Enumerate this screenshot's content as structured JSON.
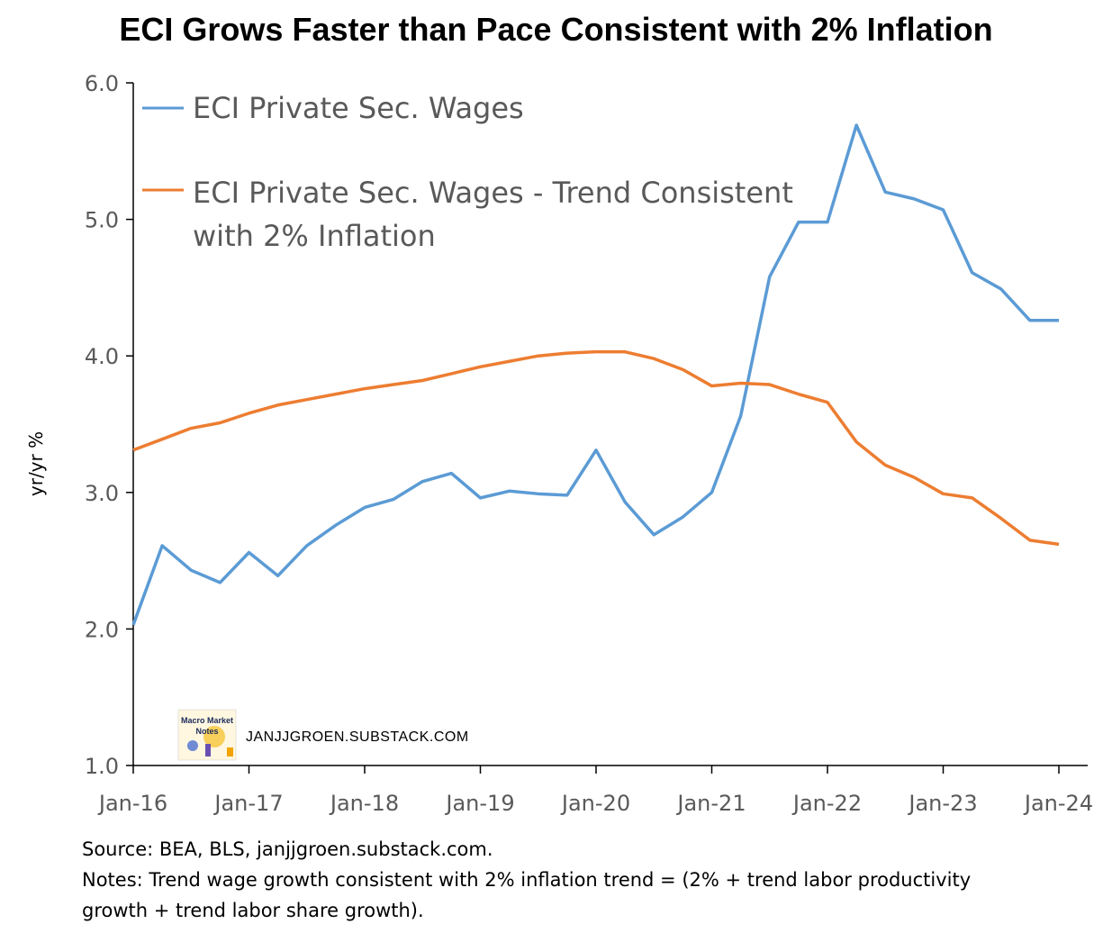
{
  "title": "ECI Grows Faster than Pace Consistent with 2% Inflation",
  "watermark": {
    "logo_text": "Macro Market Notes",
    "site": "JANJJGROEN.SUBSTACK.COM"
  },
  "notes": {
    "source": "Source: BEA, BLS, janjjgroen.substack.com.",
    "line1": "Notes: Trend wage growth consistent with 2% inflation trend = (2% + trend labor productivity",
    "line2": "growth + trend labor share growth)."
  },
  "chart_data": {
    "type": "line",
    "title": "ECI Grows Faster than Pace Consistent with 2% Inflation",
    "xlabel": "",
    "ylabel": "yr/yr %",
    "ylim": [
      1.0,
      6.0
    ],
    "yticks": [
      "1.0",
      "2.0",
      "3.0",
      "4.0",
      "5.0",
      "6.0"
    ],
    "xticks": [
      "Jan-16",
      "Jan-17",
      "Jan-18",
      "Jan-19",
      "Jan-20",
      "Jan-21",
      "Jan-22",
      "Jan-23",
      "Jan-24"
    ],
    "legend_position": "top-left",
    "grid": false,
    "x": [
      "2016-Q1",
      "2016-Q2",
      "2016-Q3",
      "2016-Q4",
      "2017-Q1",
      "2017-Q2",
      "2017-Q3",
      "2017-Q4",
      "2018-Q1",
      "2018-Q2",
      "2018-Q3",
      "2018-Q4",
      "2019-Q1",
      "2019-Q2",
      "2019-Q3",
      "2019-Q4",
      "2020-Q1",
      "2020-Q2",
      "2020-Q3",
      "2020-Q4",
      "2021-Q1",
      "2021-Q2",
      "2021-Q3",
      "2021-Q4",
      "2022-Q1",
      "2022-Q2",
      "2022-Q3",
      "2022-Q4",
      "2023-Q1",
      "2023-Q2",
      "2023-Q3",
      "2023-Q4",
      "2024-Q1"
    ],
    "series": [
      {
        "name": "ECI Private Sec. Wages",
        "color": "#5b9bd5",
        "values": [
          2.03,
          2.61,
          2.43,
          2.34,
          2.56,
          2.39,
          2.61,
          2.76,
          2.89,
          2.95,
          3.08,
          3.14,
          2.96,
          3.01,
          2.99,
          2.98,
          3.31,
          2.93,
          2.69,
          2.82,
          3.0,
          3.56,
          4.58,
          4.98,
          4.98,
          5.69,
          5.2,
          5.15,
          5.07,
          4.61,
          4.49,
          4.26,
          4.26
        ]
      },
      {
        "name_line1": "ECI Private Sec. Wages - Trend Consistent",
        "name_line2": "with 2% Inflation",
        "color": "#ed7d31",
        "values": [
          3.31,
          3.39,
          3.47,
          3.51,
          3.58,
          3.64,
          3.68,
          3.72,
          3.76,
          3.79,
          3.82,
          3.87,
          3.92,
          3.96,
          4.0,
          4.02,
          4.03,
          4.03,
          3.98,
          3.9,
          3.78,
          3.8,
          3.79,
          3.72,
          3.66,
          3.37,
          3.2,
          3.11,
          2.99,
          2.96,
          2.81,
          2.65,
          2.62
        ]
      }
    ]
  }
}
